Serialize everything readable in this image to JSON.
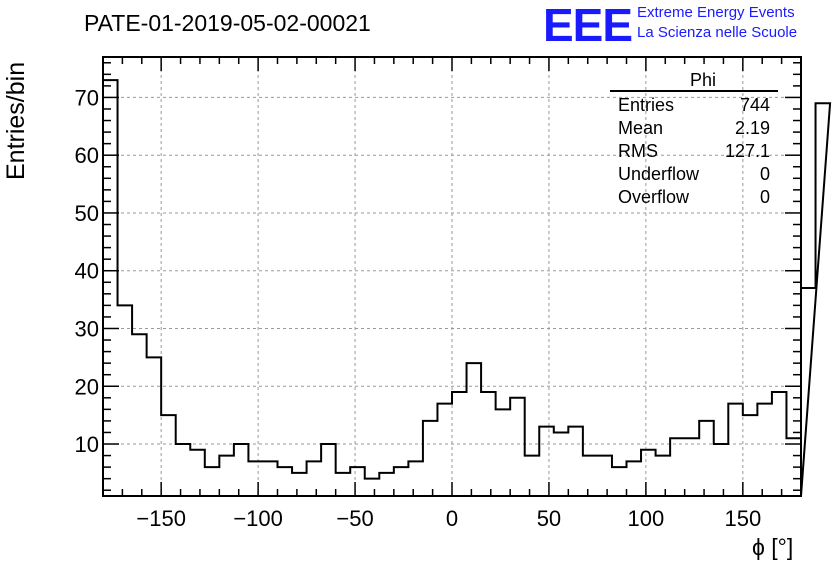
{
  "title": "PATE-01-2019-05-02-00021",
  "logo": {
    "mark": "EEE",
    "line1": "Extreme Energy Events",
    "line2": "La Scienza nelle Scuole",
    "color": "#1a1aff"
  },
  "stats_box": {
    "name": "Phi",
    "rows": [
      {
        "label": "Entries",
        "value": "744"
      },
      {
        "label": "Mean",
        "value": "2.19"
      },
      {
        "label": "RMS",
        "value": "127.1"
      },
      {
        "label": "Underflow",
        "value": "0"
      },
      {
        "label": "Overflow",
        "value": "0"
      }
    ]
  },
  "chart_data": {
    "type": "bar",
    "style": "step-histogram",
    "title": "PATE-01-2019-05-02-00021",
    "xlabel": "ϕ [°]",
    "ylabel": "Entries/bin",
    "xlim": [
      -180,
      180
    ],
    "ylim": [
      1,
      77
    ],
    "bin_width": 7.5,
    "x_ticks": [
      -150,
      -100,
      -50,
      0,
      50,
      100,
      150
    ],
    "y_ticks": [
      10,
      20,
      30,
      40,
      50,
      60,
      70
    ],
    "grid": true,
    "line_color": "#000000",
    "values": [
      73,
      34,
      29,
      25,
      15,
      10,
      9,
      6,
      8,
      10,
      7,
      7,
      6,
      5,
      7,
      10,
      5,
      6,
      4,
      5,
      6,
      7,
      14,
      17,
      19,
      24,
      19,
      16,
      18,
      8,
      13,
      12,
      13,
      8,
      8,
      6,
      7,
      9,
      8,
      11,
      11,
      14,
      10,
      17,
      15,
      17,
      19,
      11,
      37,
      69
    ]
  }
}
